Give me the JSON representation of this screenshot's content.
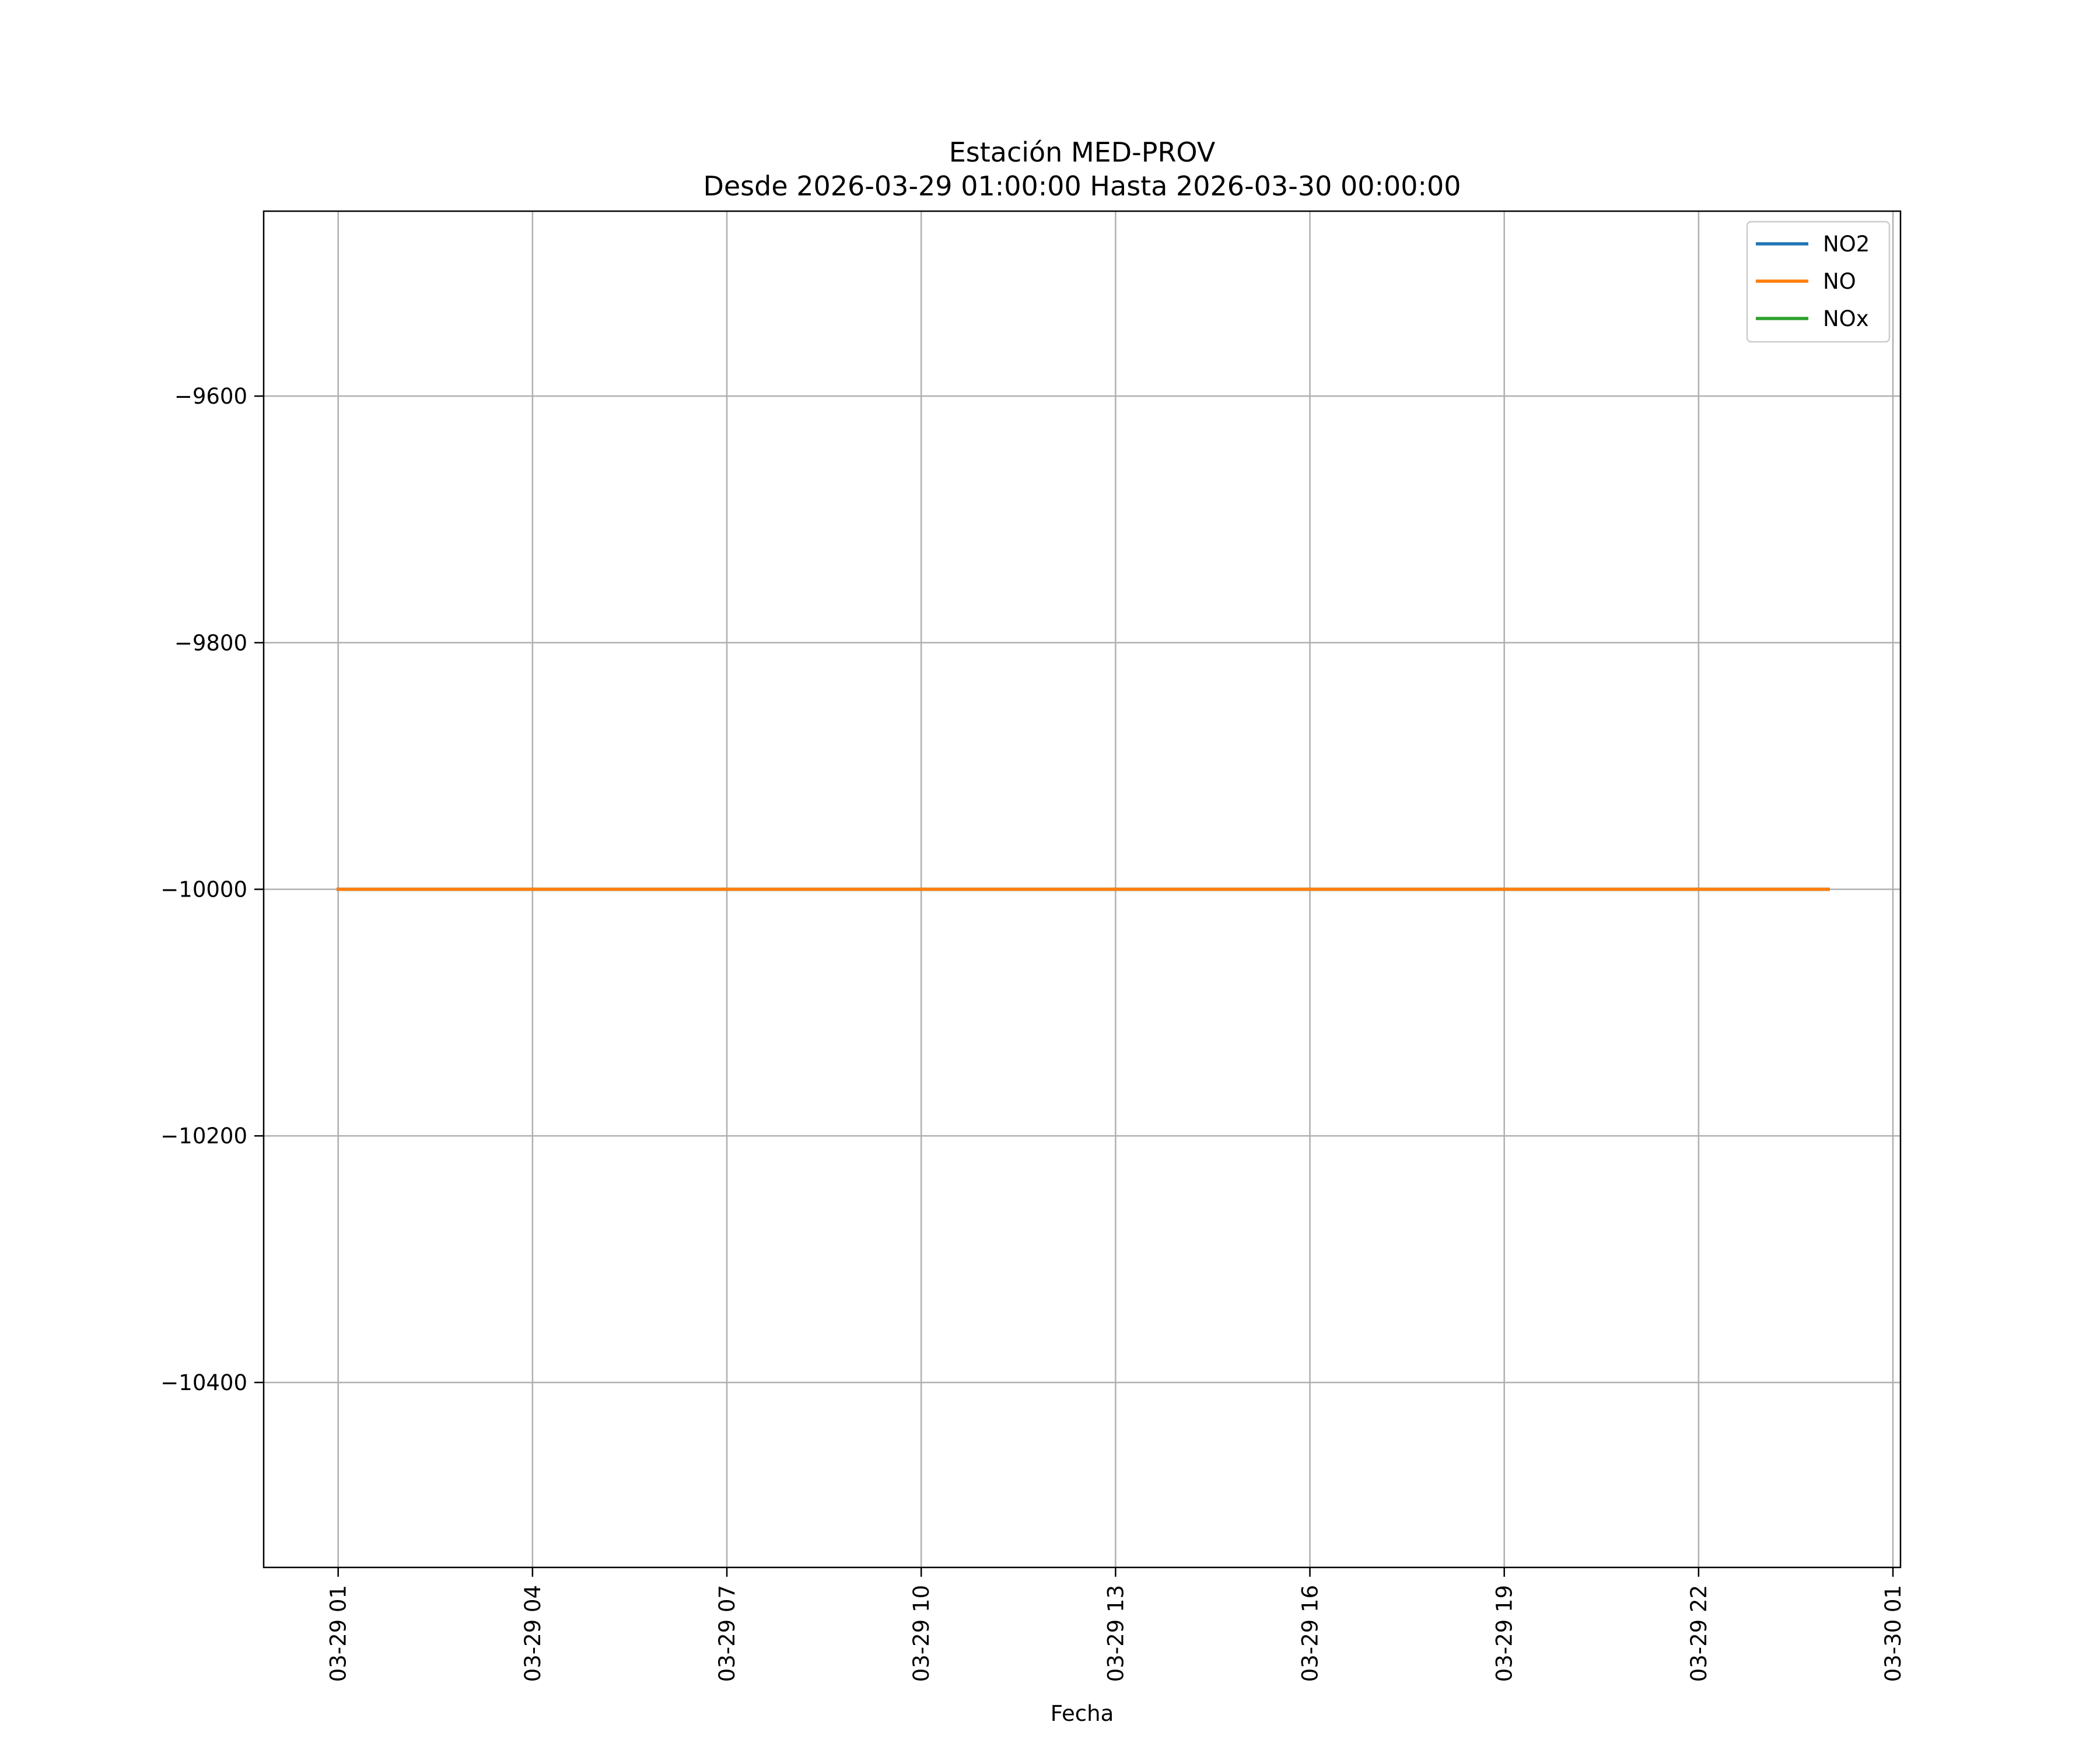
{
  "chart_data": {
    "type": "line",
    "title": "Estación MED-PROV",
    "subtitle": "Desde 2026-03-29 01:00:00 Hasta 2026-03-30 00:00:00",
    "xlabel": "Fecha",
    "ylabel": "",
    "x_start": "2026-03-29 01:00",
    "x_end": "2026-03-30 00:00",
    "xlim": [
      "2026-03-28 23:51",
      "2026-03-30 01:07"
    ],
    "ylim": [
      -10550,
      -9450
    ],
    "x_ticks": [
      {
        "time": "2026-03-29 01:00",
        "label": "03-29 01"
      },
      {
        "time": "2026-03-29 04:00",
        "label": "03-29 04"
      },
      {
        "time": "2026-03-29 07:00",
        "label": "03-29 07"
      },
      {
        "time": "2026-03-29 10:00",
        "label": "03-29 10"
      },
      {
        "time": "2026-03-29 13:00",
        "label": "03-29 13"
      },
      {
        "time": "2026-03-29 16:00",
        "label": "03-29 16"
      },
      {
        "time": "2026-03-29 19:00",
        "label": "03-29 19"
      },
      {
        "time": "2026-03-29 22:00",
        "label": "03-29 22"
      },
      {
        "time": "2026-03-30 01:00",
        "label": "03-30 01"
      }
    ],
    "y_ticks": [
      {
        "value": -9600,
        "label": "−9600"
      },
      {
        "value": -9800,
        "label": "−9800"
      },
      {
        "value": -10000,
        "label": "−10000"
      },
      {
        "value": -10200,
        "label": "−10200"
      },
      {
        "value": -10400,
        "label": "−10400"
      }
    ],
    "grid": true,
    "legend_position": "top-right",
    "series": [
      {
        "name": "NO2",
        "color": "#1f77b4",
        "value": -10000
      },
      {
        "name": "NO",
        "color": "#ff7f0e",
        "value": -10000
      },
      {
        "name": "NOx",
        "color": "#2ca02c",
        "value": -10000
      }
    ],
    "series_draw_order": [
      "NOx",
      "NO2",
      "NO"
    ]
  }
}
